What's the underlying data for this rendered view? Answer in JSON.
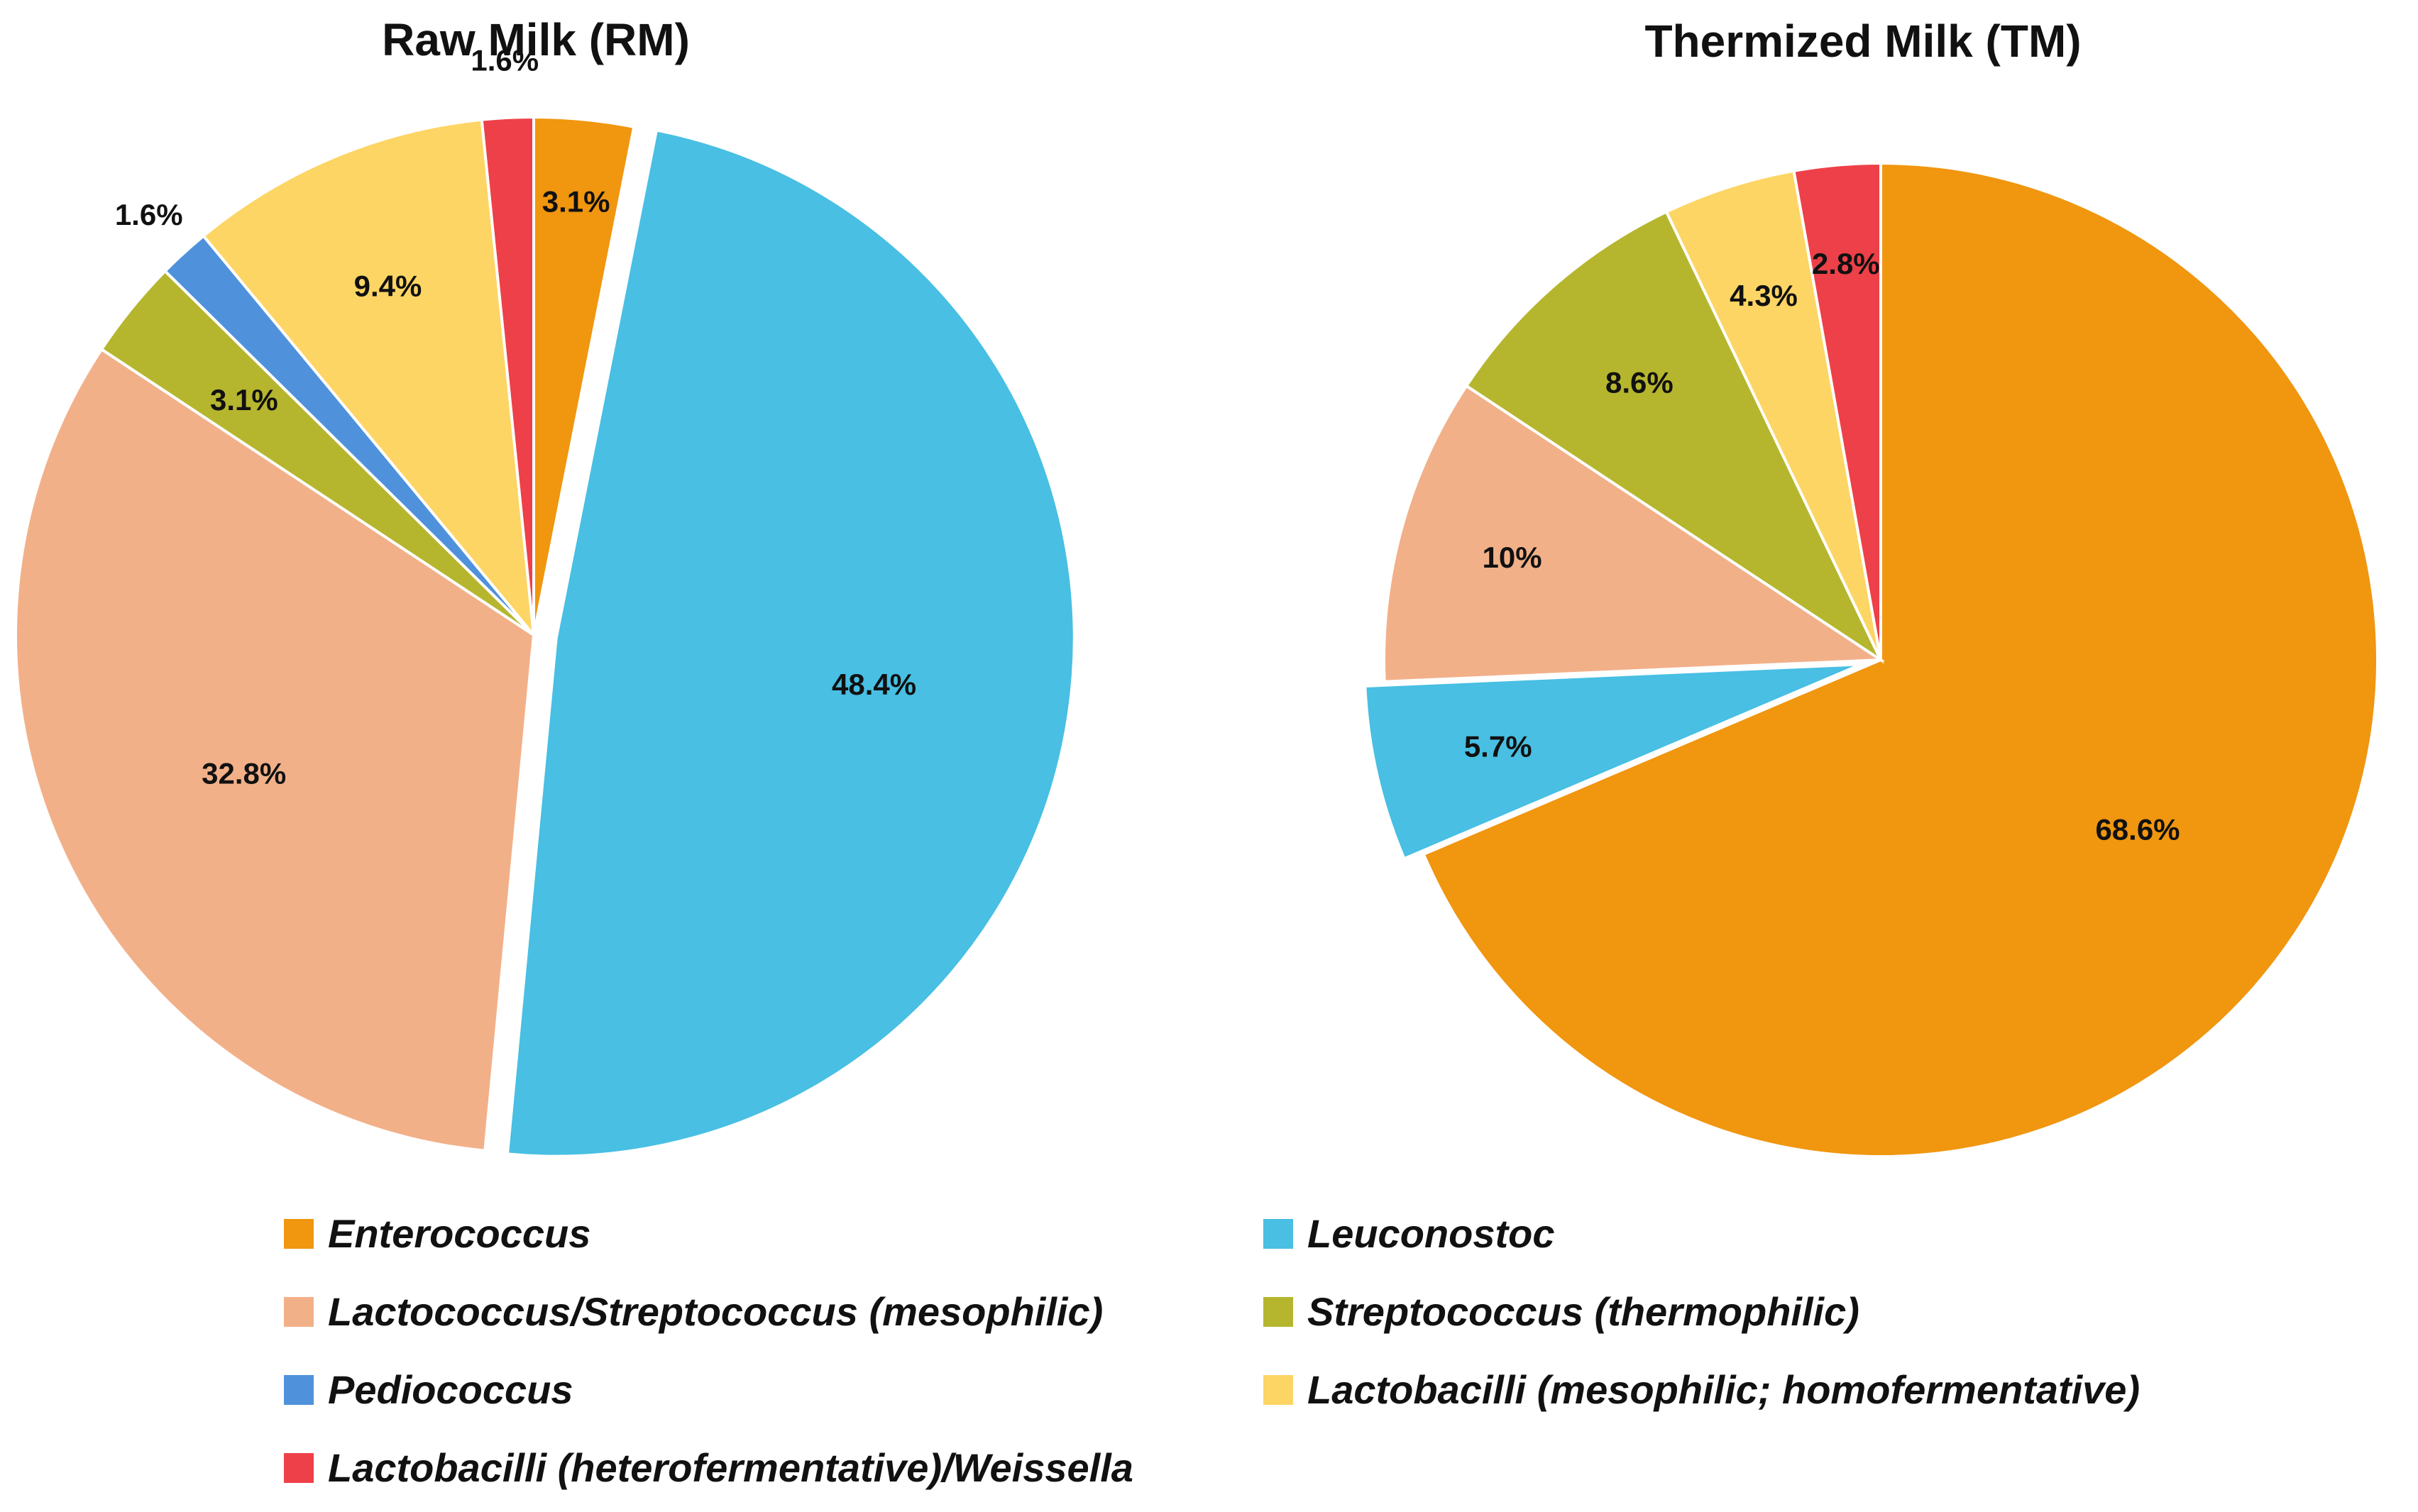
{
  "chart_data": {
    "type": "pie",
    "legend_position": "bottom",
    "legend": [
      {
        "key": "enterococcus",
        "name": "Enterococcus",
        "color": "#F0960F"
      },
      {
        "key": "leuconostoc",
        "name": "Leuconostoc",
        "color": "#48BFE3"
      },
      {
        "key": "lactococcus",
        "name": "Lactococcus/Streptococcus (mesophilic)",
        "color": "#F2B089"
      },
      {
        "key": "streptococcus",
        "name": "Streptococcus (thermophilic)",
        "color": "#B5B62E"
      },
      {
        "key": "pediococcus",
        "name": "Pediococcus",
        "color": "#4F92DB"
      },
      {
        "key": "lactobacilli_meso",
        "name": "Lactobacilli (mesophilic; homofermentative)",
        "color": "#FDD564"
      },
      {
        "key": "lactobacilli_hetero",
        "name": "Lactobacilli (heterofermentative)/Weissella",
        "color": "#EE4048"
      }
    ],
    "charts": [
      {
        "title": "Raw Milk (RM)",
        "slices": [
          {
            "key": "enterococcus",
            "value": 3.1,
            "label": "3.1%"
          },
          {
            "key": "leuconostoc",
            "value": 48.4,
            "label": "48.4%"
          },
          {
            "key": "lactococcus",
            "value": 32.8,
            "label": "32.8%"
          },
          {
            "key": "streptococcus",
            "value": 3.1,
            "label": "3.1%"
          },
          {
            "key": "pediococcus",
            "value": 1.6,
            "label": "1.6%"
          },
          {
            "key": "lactobacilli_meso",
            "value": 9.4,
            "label": "9.4%"
          },
          {
            "key": "lactobacilli_hetero",
            "value": 1.6,
            "label": "1.6%"
          }
        ]
      },
      {
        "title": "Thermized Milk (TM)",
        "slices": [
          {
            "key": "enterococcus",
            "value": 68.6,
            "label": "68.6%"
          },
          {
            "key": "leuconostoc",
            "value": 5.7,
            "label": "5.7%"
          },
          {
            "key": "lactococcus",
            "value": 10,
            "label": "10%"
          },
          {
            "key": "streptococcus",
            "value": 8.6,
            "label": "8.6%"
          },
          {
            "key": "lactobacilli_meso",
            "value": 4.3,
            "label": "4.3%"
          },
          {
            "key": "lactobacilli_hetero",
            "value": 2.8,
            "label": "2.8%"
          }
        ]
      }
    ]
  }
}
